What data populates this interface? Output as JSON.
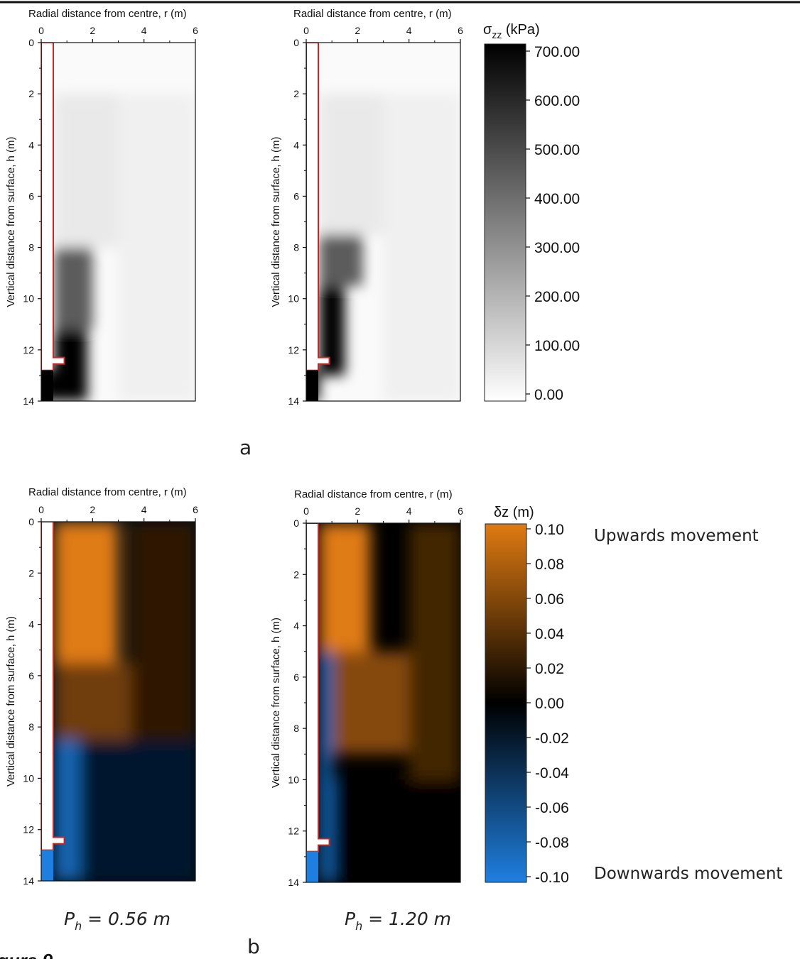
{
  "chart_data": [
    {
      "type": "heatmap",
      "panel": "a",
      "xlabel": "Radial distance from centre, r (m)",
      "ylabel": "Vertical distance from surface, h (m)",
      "xlim": [
        0,
        6
      ],
      "ylim": [
        0,
        14
      ],
      "y_inverted": true,
      "x_ticks": [
        "0",
        "2",
        "4",
        "6"
      ],
      "y_ticks": [
        "0",
        "2",
        "4",
        "6",
        "8",
        "10",
        "12",
        "14"
      ],
      "field": "σzz (kPa)",
      "pile_head_above_toe_m": 0.56,
      "regions": [
        {
          "r": [
            0,
            0.5
          ],
          "h": [
            12.8,
            14
          ],
          "value": 700
        },
        {
          "r": [
            0.5,
            1.8
          ],
          "h": [
            11.2,
            14
          ],
          "value": 700
        },
        {
          "r": [
            0.5,
            2.0
          ],
          "h": [
            8.0,
            11.2
          ],
          "value": 450
        },
        {
          "r": [
            0.5,
            3.0
          ],
          "h": [
            2.0,
            8.0
          ],
          "value": 60
        },
        {
          "r": [
            3.0,
            6.0
          ],
          "h": [
            2.0,
            14.0
          ],
          "value": 40
        }
      ]
    },
    {
      "type": "heatmap",
      "panel": "a",
      "xlabel": "Radial distance from centre, r (m)",
      "ylabel": "Vertical distance from surface, h (m)",
      "xlim": [
        0,
        6
      ],
      "ylim": [
        0,
        14
      ],
      "y_inverted": true,
      "x_ticks": [
        "0",
        "2",
        "4",
        "6"
      ],
      "y_ticks": [
        "0",
        "2",
        "4",
        "6",
        "8",
        "10",
        "12",
        "14"
      ],
      "field": "σzz (kPa)",
      "pile_head_above_toe_m": 1.2,
      "regions": [
        {
          "r": [
            0,
            0.5
          ],
          "h": [
            12.8,
            14
          ],
          "value": 700
        },
        {
          "r": [
            0.5,
            1.5
          ],
          "h": [
            9.5,
            13.0
          ],
          "value": 700
        },
        {
          "r": [
            0.5,
            2.2
          ],
          "h": [
            7.5,
            9.5
          ],
          "value": 450
        },
        {
          "r": [
            0.5,
            3.0
          ],
          "h": [
            2.0,
            7.5
          ],
          "value": 60
        },
        {
          "r": [
            3.0,
            6.0
          ],
          "h": [
            2.0,
            14.0
          ],
          "value": 40
        }
      ]
    },
    {
      "type": "heatmap",
      "panel": "b",
      "xlabel": "Radial distance from centre, r (m)",
      "ylabel": "Vertical distance from surface, h (m)",
      "xlim": [
        0,
        6
      ],
      "ylim": [
        0,
        14
      ],
      "y_inverted": true,
      "x_ticks": [
        "0",
        "2",
        "4",
        "6"
      ],
      "y_ticks": [
        "0",
        "2",
        "4",
        "6",
        "8",
        "10",
        "12",
        "14"
      ],
      "field": "δz (m)",
      "pile_head_above_toe_m": 0.56,
      "regions": [
        {
          "r": [
            0.5,
            3.0
          ],
          "h": [
            0,
            5.5
          ],
          "value": 0.1
        },
        {
          "r": [
            0.5,
            3.5
          ],
          "h": [
            5.5,
            8.5
          ],
          "value": 0.05
        },
        {
          "r": [
            3.5,
            6.0
          ],
          "h": [
            0,
            8.5
          ],
          "value": 0.02
        },
        {
          "r": [
            0.5,
            1.5
          ],
          "h": [
            8.5,
            14
          ],
          "value": -0.08
        },
        {
          "r": [
            1.5,
            6.0
          ],
          "h": [
            8.5,
            14
          ],
          "value": -0.02
        }
      ]
    },
    {
      "type": "heatmap",
      "panel": "b",
      "xlabel": "Radial distance from centre, r (m)",
      "ylabel": "Vertical distance from surface, h (m)",
      "xlim": [
        0,
        6
      ],
      "ylim": [
        0,
        14
      ],
      "y_inverted": true,
      "x_ticks": [
        "0",
        "2",
        "4",
        "6"
      ],
      "y_ticks": [
        "0",
        "2",
        "4",
        "6",
        "8",
        "10",
        "12",
        "14"
      ],
      "field": "δz (m)",
      "pile_head_above_toe_m": 1.2,
      "regions": [
        {
          "r": [
            0.5,
            2.5
          ],
          "h": [
            0,
            5.0
          ],
          "value": 0.1
        },
        {
          "r": [
            0.5,
            4.0
          ],
          "h": [
            5.0,
            9.0
          ],
          "value": 0.06
        },
        {
          "r": [
            4.0,
            6.0
          ],
          "h": [
            0,
            10.0
          ],
          "value": 0.03
        },
        {
          "r": [
            0.5,
            1.0
          ],
          "h": [
            5.0,
            14
          ],
          "value": -0.08
        },
        {
          "r": [
            1.0,
            6.0
          ],
          "h": [
            10.0,
            14
          ],
          "value": 0.0
        }
      ]
    }
  ],
  "colorbar_a": {
    "title": "σzz (kPa)",
    "title_main": "σ",
    "title_sub": "zz",
    "title_unit": " (kPa)",
    "ticks": [
      "700.00",
      "600.00",
      "500.00",
      "400.00",
      "300.00",
      "200.00",
      "100.00",
      "0.00"
    ],
    "min": 0,
    "max": 700,
    "color_low": "#ffffff",
    "color_high": "#000000"
  },
  "colorbar_b": {
    "title": "δz (m)",
    "ticks": [
      "0.10",
      "0.08",
      "0.06",
      "0.04",
      "0.02",
      "0.00",
      "-0.02",
      "-0.04",
      "-0.06",
      "-0.08",
      "-0.10"
    ],
    "min": -0.1,
    "max": 0.1,
    "color_low": "#1f7fe0",
    "color_mid": "#000000",
    "color_high": "#e07b12",
    "label_top": "Upwards movement",
    "label_bottom": "Downwards movement"
  },
  "colors": {
    "pile_outline": "#c0282a"
  },
  "captions": {
    "panel_a": "a",
    "panel_b": "b",
    "left": {
      "main": "P",
      "sub": "h",
      "rest": " = 0.56 m"
    },
    "right": {
      "main": "P",
      "sub": "h",
      "rest": " = 1.20 m"
    },
    "figure": "gure 9"
  }
}
